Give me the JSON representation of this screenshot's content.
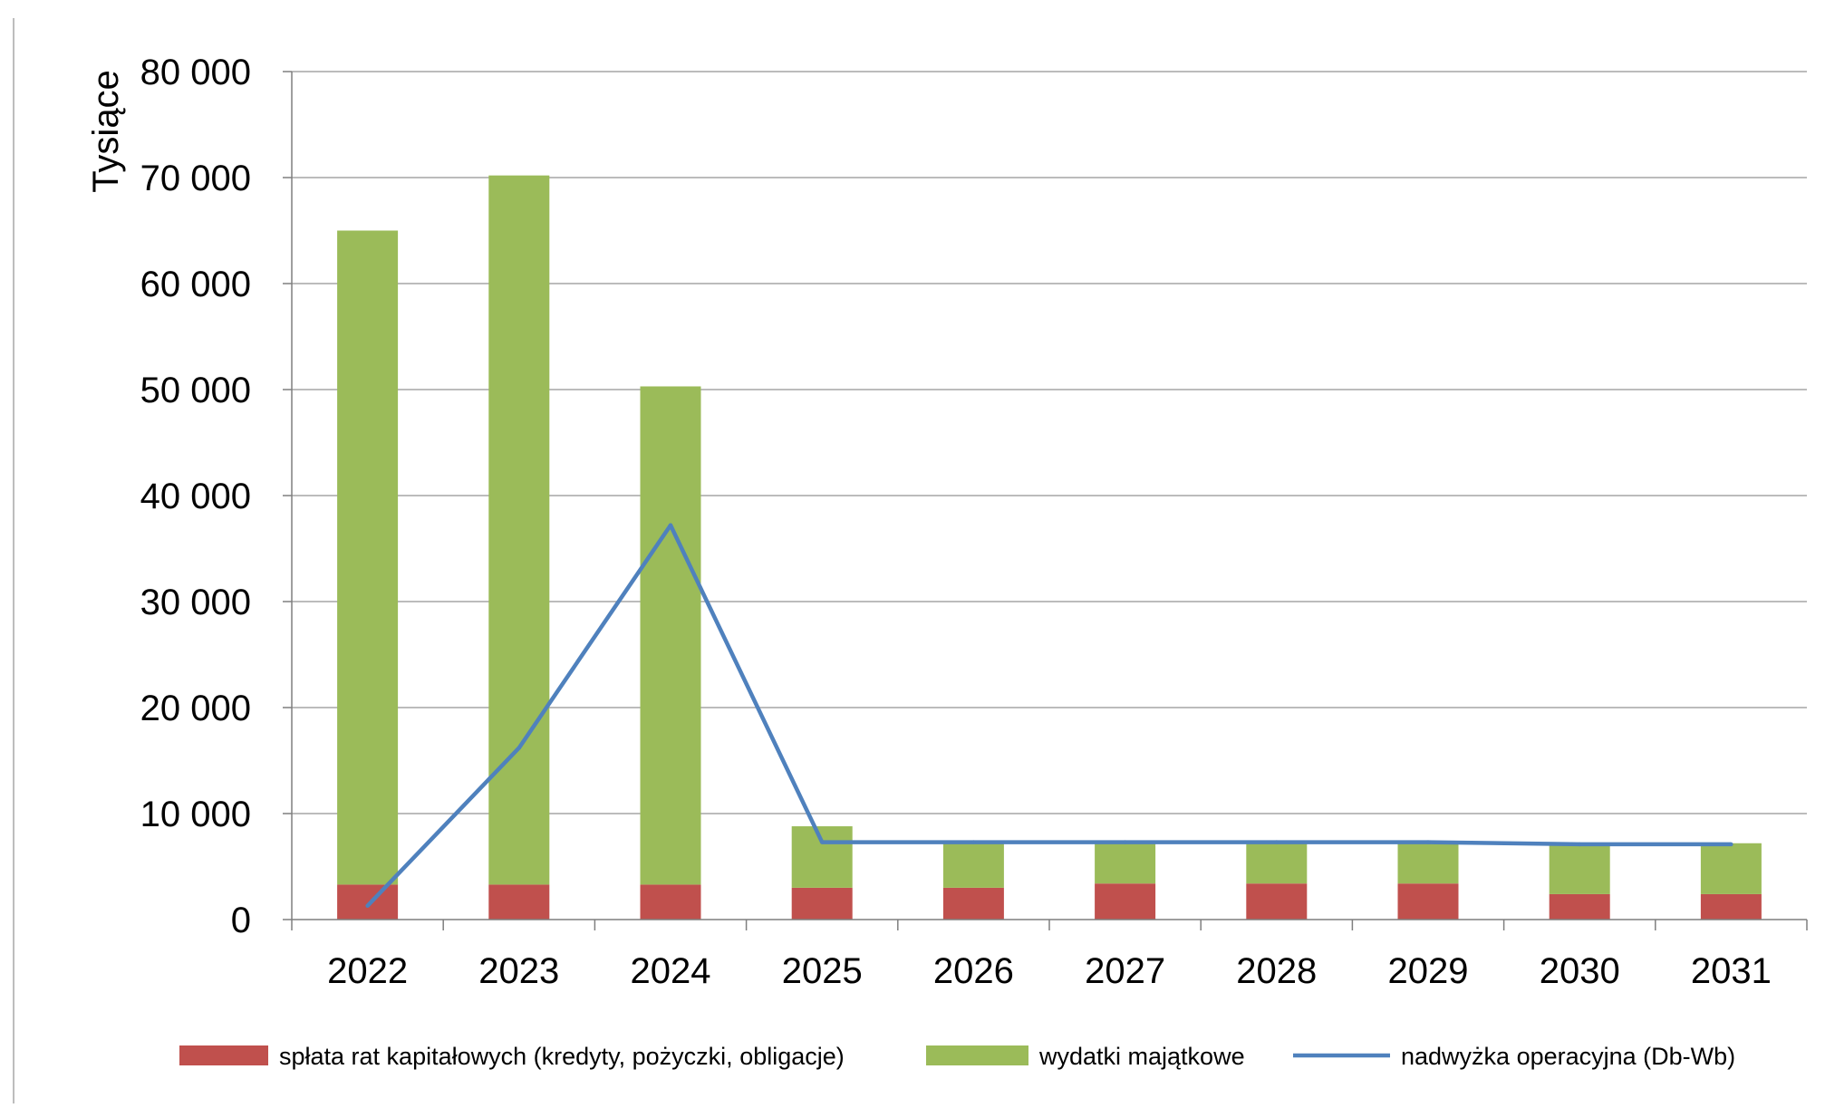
{
  "chart_data": {
    "type": "bar",
    "stacked": true,
    "ylabel": "Tysiące",
    "xlabel": "",
    "ylim": [
      0,
      80000
    ],
    "yticks": [
      0,
      10000,
      20000,
      30000,
      40000,
      50000,
      60000,
      70000,
      80000
    ],
    "ytick_labels": [
      "0",
      "10 000",
      "20 000",
      "30 000",
      "40 000",
      "50 000",
      "60 000",
      "70 000",
      "80 000"
    ],
    "grid": true,
    "legend_position": "bottom",
    "categories": [
      "2022",
      "2023",
      "2024",
      "2025",
      "2026",
      "2027",
      "2028",
      "2029",
      "2030",
      "2031"
    ],
    "series": [
      {
        "name": "spłata rat kapitałowych (kredyty, pożyczki, obligacje)",
        "kind": "bar",
        "color": "#c0504d",
        "values": [
          3300,
          3300,
          3300,
          3000,
          3000,
          3400,
          3400,
          3400,
          2400,
          2400
        ]
      },
      {
        "name": "wydatki majątkowe",
        "kind": "bar",
        "color": "#9bbb59",
        "values": [
          61700,
          66900,
          47000,
          5800,
          4300,
          3900,
          3900,
          3900,
          4800,
          4800
        ]
      },
      {
        "name": "nadwyżka operacyjna (Db-Wb)",
        "kind": "line",
        "color": "#4f81bd",
        "values": [
          1300,
          16200,
          37200,
          7300,
          7300,
          7300,
          7300,
          7300,
          7100,
          7100
        ]
      }
    ]
  }
}
